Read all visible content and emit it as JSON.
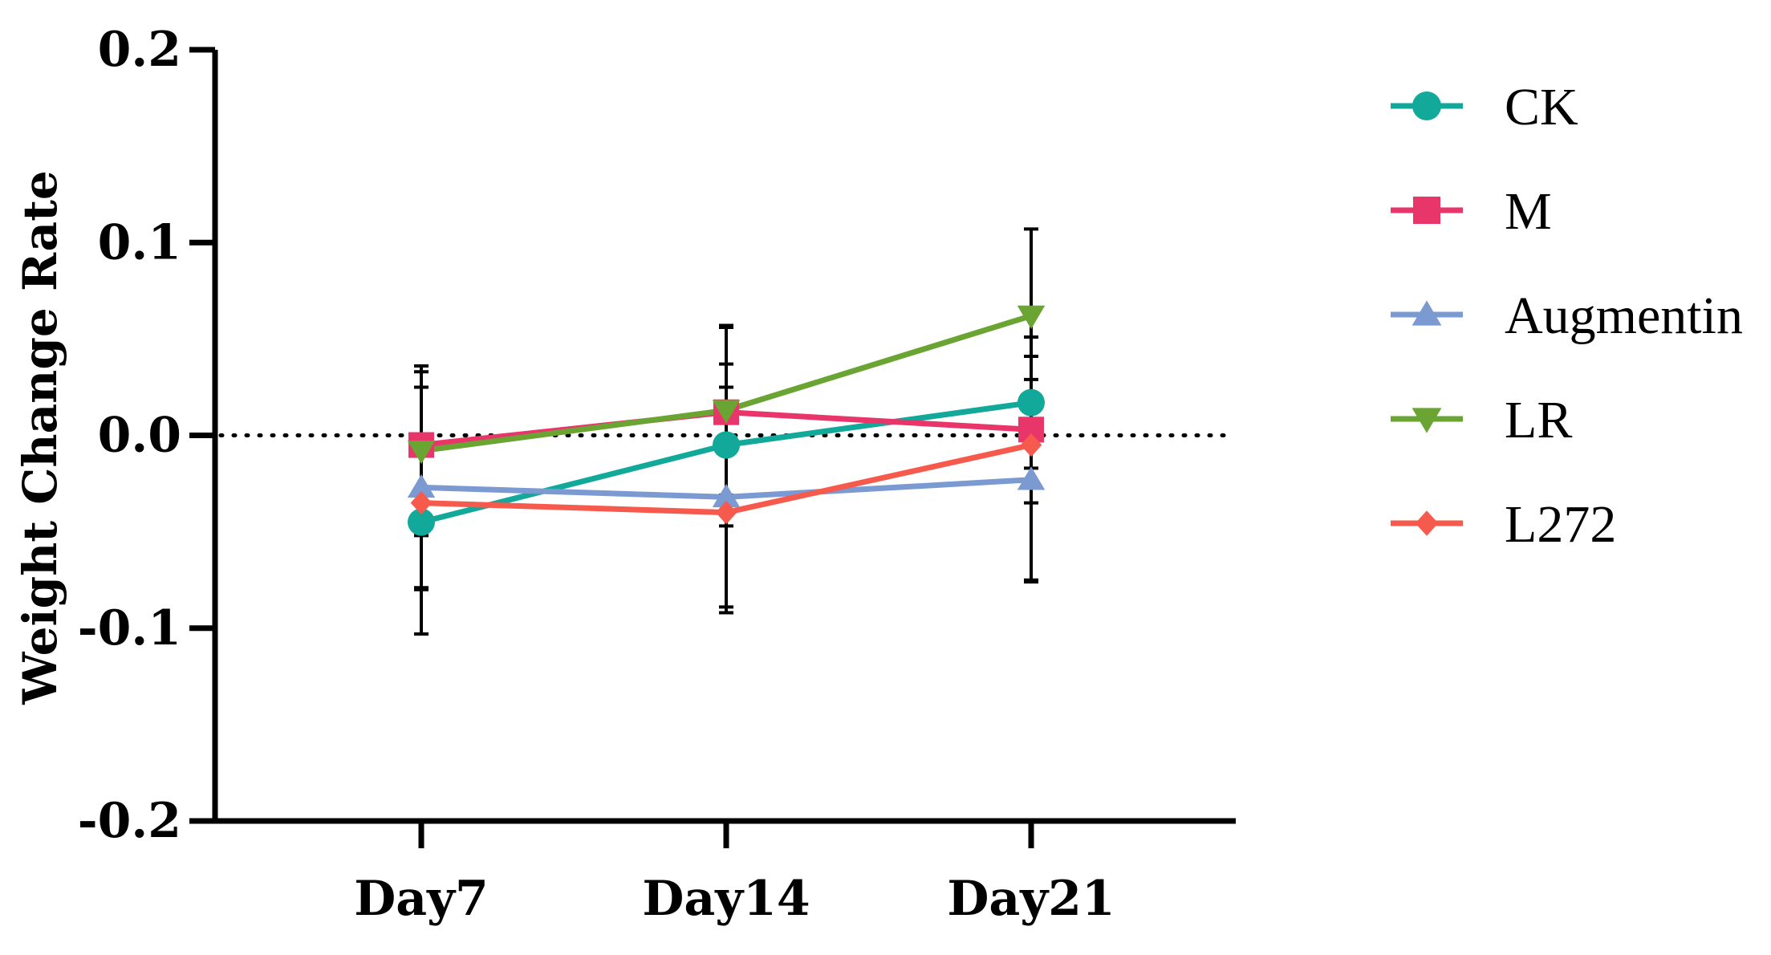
{
  "chart_data": {
    "type": "line",
    "title": "",
    "xlabel": "",
    "ylabel": "Weight Change Rate",
    "ylim": [
      -0.2,
      0.2
    ],
    "yticks": [
      0.2,
      0.1,
      0.0,
      -0.1,
      -0.2
    ],
    "ytick_labels": [
      "0.2",
      "0.1",
      "0.0",
      "-0.1",
      "-0.2"
    ],
    "categories": [
      "Day7",
      "Day14",
      "Day21"
    ],
    "reference_line": 0.0,
    "legend_position": "right",
    "series": [
      {
        "name": "CK",
        "color": "#12A89A",
        "marker": "circle",
        "values": [
          -0.045,
          -0.005,
          0.017
        ],
        "errors": [
          0.035,
          0.042,
          0.034
        ]
      },
      {
        "name": "M",
        "color": "#E8366B",
        "marker": "square",
        "values": [
          -0.005,
          0.012,
          0.003
        ],
        "errors": [
          0.03,
          0.044,
          0.038
        ]
      },
      {
        "name": "Augmentin",
        "color": "#7B9AD2",
        "marker": "triangle-up",
        "values": [
          -0.027,
          -0.032,
          -0.023
        ],
        "errors": [
          0.052,
          0.057,
          0.052
        ]
      },
      {
        "name": "LR",
        "color": "#6AA533",
        "marker": "triangle-down",
        "values": [
          -0.008,
          0.013,
          0.062
        ],
        "errors": [
          0.044,
          0.044,
          0.045
        ]
      },
      {
        "name": "L272",
        "color": "#F55A4C",
        "marker": "diamond",
        "values": [
          -0.035,
          -0.04,
          -0.005
        ],
        "errors": [
          0.068,
          0.052,
          0.071
        ]
      }
    ]
  }
}
